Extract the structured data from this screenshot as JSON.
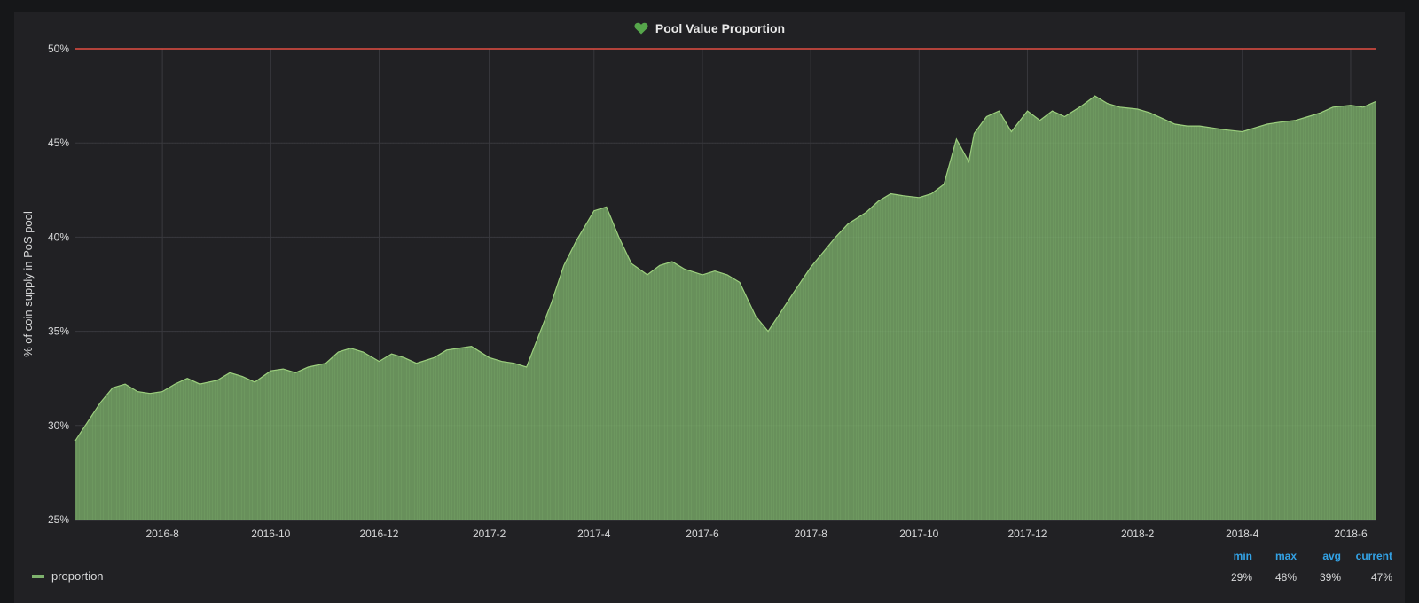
{
  "panel": {
    "title": "Pool Value Proportion",
    "icon": "heart-icon",
    "icon_color": "#56a64b"
  },
  "legend": {
    "series_name": "proportion",
    "color": "#7eb26d",
    "stats_headers": [
      "min",
      "max",
      "avg",
      "current"
    ],
    "stats_values": [
      "29%",
      "48%",
      "39%",
      "47%"
    ]
  },
  "chart_data": {
    "type": "area",
    "title": "Pool Value Proportion",
    "xlabel": "",
    "ylabel": "% of coin supply in PoS pool",
    "ylim": [
      25,
      50
    ],
    "yticks": [
      "25%",
      "30%",
      "35%",
      "40%",
      "45%",
      "50%"
    ],
    "xticks": [
      "2016-8",
      "2016-10",
      "2016-12",
      "2017-2",
      "2017-4",
      "2017-6",
      "2017-8",
      "2017-10",
      "2017-12",
      "2018-2",
      "2018-4",
      "2018-6"
    ],
    "threshold": {
      "value": 50,
      "color": "#e24d42"
    },
    "grid": true,
    "legend_position": "bottom",
    "series": [
      {
        "name": "proportion",
        "color": "#7eb26d",
        "x": [
          "2016-6-13",
          "2016-6-20",
          "2016-6-27",
          "2016-7-4",
          "2016-7-11",
          "2016-7-18",
          "2016-7-25",
          "2016-8-1",
          "2016-8-8",
          "2016-8-15",
          "2016-8-22",
          "2016-9-1",
          "2016-9-8",
          "2016-9-15",
          "2016-9-22",
          "2016-10-1",
          "2016-10-8",
          "2016-10-15",
          "2016-10-22",
          "2016-11-1",
          "2016-11-8",
          "2016-11-15",
          "2016-11-22",
          "2016-12-1",
          "2016-12-8",
          "2016-12-15",
          "2016-12-22",
          "2017-1-1",
          "2017-1-8",
          "2017-1-15",
          "2017-1-22",
          "2017-2-1",
          "2017-2-8",
          "2017-2-15",
          "2017-2-22",
          "2017-3-1",
          "2017-3-8",
          "2017-3-15",
          "2017-3-22",
          "2017-4-1",
          "2017-4-8",
          "2017-4-15",
          "2017-4-22",
          "2017-5-1",
          "2017-5-8",
          "2017-5-15",
          "2017-5-22",
          "2017-6-1",
          "2017-6-8",
          "2017-6-15",
          "2017-6-22",
          "2017-7-1",
          "2017-7-8",
          "2017-7-15",
          "2017-7-22",
          "2017-8-1",
          "2017-8-8",
          "2017-8-15",
          "2017-8-22",
          "2017-9-1",
          "2017-9-8",
          "2017-9-15",
          "2017-9-22",
          "2017-10-1",
          "2017-10-8",
          "2017-10-15",
          "2017-10-22",
          "2017-10-29",
          "2017-11-1",
          "2017-11-8",
          "2017-11-15",
          "2017-11-22",
          "2017-12-1",
          "2017-12-8",
          "2017-12-15",
          "2017-12-22",
          "2018-1-1",
          "2018-1-8",
          "2018-1-15",
          "2018-1-22",
          "2018-2-1",
          "2018-2-8",
          "2018-2-15",
          "2018-2-22",
          "2018-3-1",
          "2018-3-8",
          "2018-3-15",
          "2018-3-22",
          "2018-4-1",
          "2018-4-8",
          "2018-4-15",
          "2018-4-22",
          "2018-5-1",
          "2018-5-8",
          "2018-5-15",
          "2018-5-22",
          "2018-6-1",
          "2018-6-8",
          "2018-6-15"
        ],
        "y": [
          29.2,
          30.2,
          31.2,
          32.0,
          32.2,
          31.8,
          31.7,
          31.8,
          32.2,
          32.5,
          32.2,
          32.4,
          32.8,
          32.6,
          32.3,
          32.9,
          33.0,
          32.8,
          33.1,
          33.3,
          33.9,
          34.1,
          33.9,
          33.4,
          33.8,
          33.6,
          33.3,
          33.6,
          34.0,
          34.1,
          34.2,
          33.6,
          33.4,
          33.3,
          33.1,
          34.8,
          36.5,
          38.5,
          39.8,
          41.4,
          41.6,
          40.0,
          38.6,
          38.0,
          38.5,
          38.7,
          38.3,
          38.0,
          38.2,
          38.0,
          37.6,
          35.8,
          35.0,
          36.0,
          37.0,
          38.4,
          39.2,
          40.0,
          40.7,
          41.3,
          41.9,
          42.3,
          42.2,
          42.1,
          42.3,
          42.8,
          45.2,
          44.0,
          45.5,
          46.4,
          46.7,
          45.6,
          46.7,
          46.2,
          46.7,
          46.4,
          47.0,
          47.5,
          47.1,
          46.9,
          46.8,
          46.6,
          46.3,
          46.0,
          45.9,
          45.9,
          45.8,
          45.7,
          45.6,
          45.8,
          46.0,
          46.1,
          46.2,
          46.4,
          46.6,
          46.9,
          47.0,
          46.9,
          47.2
        ]
      }
    ]
  }
}
